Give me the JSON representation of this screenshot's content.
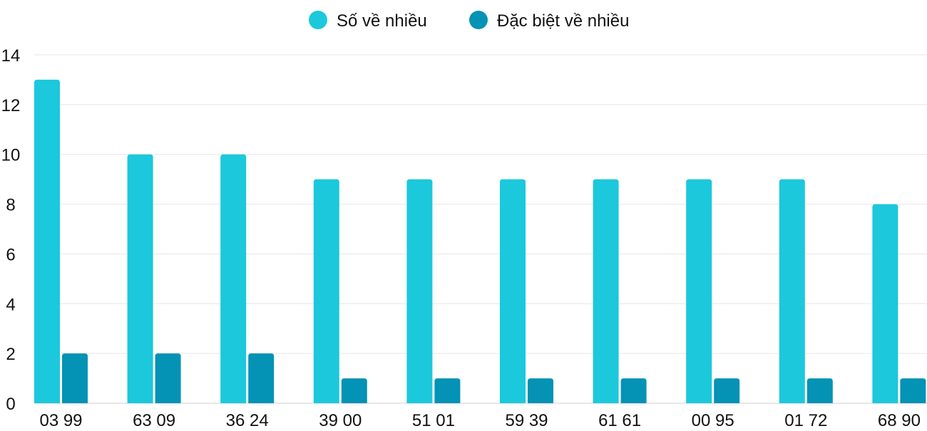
{
  "chart_data": {
    "type": "bar",
    "title": "",
    "xlabel": "",
    "ylabel": "",
    "ylim": [
      0,
      14
    ],
    "yticks": [
      0,
      2,
      4,
      6,
      8,
      10,
      12,
      14
    ],
    "grid": true,
    "legend_position": "top",
    "categories": [
      "03 99",
      "63 09",
      "36 24",
      "39 00",
      "51 01",
      "59 39",
      "61 61",
      "00 95",
      "01 72",
      "68 90"
    ],
    "series": [
      {
        "name": "Số về nhiều",
        "color": "#1bc8dc",
        "values": [
          13,
          10,
          10,
          9,
          9,
          9,
          9,
          9,
          9,
          8
        ]
      },
      {
        "name": "Đặc biệt về nhiều",
        "color": "#0492b5",
        "values": [
          2,
          2,
          2,
          1,
          1,
          1,
          1,
          1,
          1,
          1
        ]
      }
    ]
  }
}
